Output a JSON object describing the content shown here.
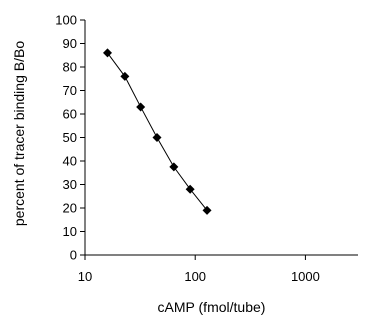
{
  "chart_data": {
    "type": "line",
    "xscale": "log",
    "xlabel": "cAMP (fmol/tube)",
    "ylabel": "percent of tracer binding B/Bo",
    "xlim": [
      10,
      3000
    ],
    "ylim": [
      0,
      100
    ],
    "x_ticks": [
      10,
      100,
      1000
    ],
    "y_ticks": [
      0,
      10,
      20,
      30,
      40,
      50,
      60,
      70,
      80,
      90,
      100
    ],
    "grid": false,
    "marker": "diamond",
    "series": [
      {
        "x": [
          16,
          23,
          32,
          45,
          64,
          90,
          128
        ],
        "y": [
          86,
          76,
          63,
          50,
          37.5,
          28,
          19
        ]
      }
    ]
  }
}
